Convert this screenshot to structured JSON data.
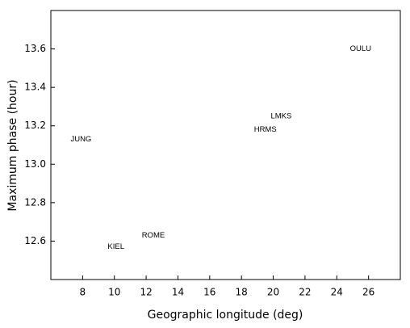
{
  "chart_data": {
    "type": "scatter",
    "x_label": "Geographic longitude (deg)",
    "y_label": "Maximum phase (hour)",
    "xlim": [
      6,
      28
    ],
    "xticks": [
      8,
      10,
      12,
      14,
      16,
      18,
      20,
      22,
      24,
      26
    ],
    "ylim": [
      12.4,
      13.8
    ],
    "yticks": [
      12.6,
      12.8,
      {
        "value": 13.0,
        "label": "13.0"
      },
      13.2,
      13.4,
      13.6
    ],
    "points": [
      {
        "label": "JUNG",
        "x": 7.9,
        "y": 13.13
      },
      {
        "label": "KIEL",
        "x": 10.1,
        "y": 12.57
      },
      {
        "label": "ROME",
        "x": 12.45,
        "y": 12.63
      },
      {
        "label": "HRMS",
        "x": 19.5,
        "y": 13.18
      },
      {
        "label": "LMKS",
        "x": 20.5,
        "y": 13.25
      },
      {
        "label": "OULU",
        "x": 25.5,
        "y": 13.6
      }
    ]
  }
}
